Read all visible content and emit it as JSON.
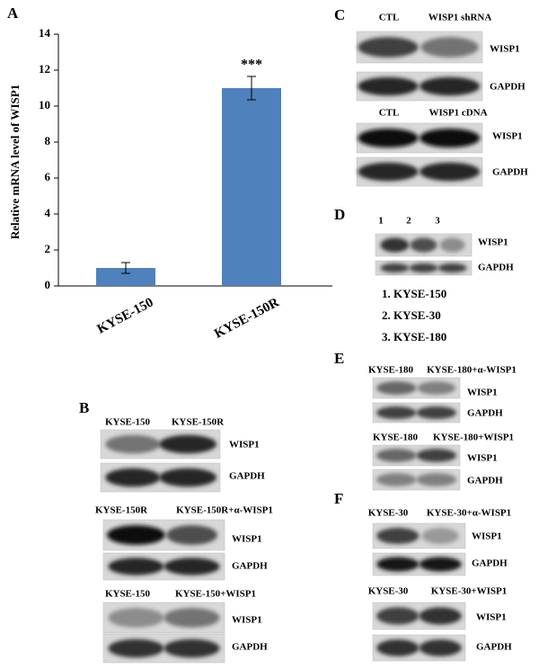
{
  "chart_data": {
    "type": "bar",
    "panel": "A",
    "y_label": "Relative mRNA level of WISP1",
    "categories": [
      "KYSE-150",
      "KYSE-150R"
    ],
    "values": [
      1,
      11
    ],
    "errors": [
      0.3,
      0.65
    ],
    "annotation": "***",
    "color": "#4f81bd",
    "ylim": [
      0,
      14
    ],
    "yticks": [
      0,
      2,
      4,
      6,
      8,
      10,
      12,
      14
    ]
  },
  "panel_b": {
    "panel": "B",
    "blots": [
      {
        "lanes": [
          "KYSE-150",
          "KYSE-150R"
        ],
        "rows": [
          "WISP1",
          "GAPDH"
        ]
      },
      {
        "lanes": [
          "KYSE-150R",
          "KYSE-150R+α-WISP1"
        ],
        "rows": [
          "WISP1",
          "GAPDH"
        ]
      },
      {
        "lanes": [
          "KYSE-150",
          "KYSE-150+WISP1"
        ],
        "rows": [
          "WISP1",
          "GAPDH"
        ]
      }
    ]
  },
  "panel_c": {
    "panel": "C",
    "blots": [
      {
        "lanes": [
          "CTL",
          "WISP1 shRNA"
        ],
        "rows": [
          "WISP1",
          "GAPDH"
        ]
      },
      {
        "lanes": [
          "CTL",
          "WISP1 cDNA"
        ],
        "rows": [
          "WISP1",
          "GAPDH"
        ]
      }
    ]
  },
  "panel_d": {
    "panel": "D",
    "blots": [
      {
        "lanes": [
          "1",
          "2",
          "3"
        ],
        "rows": [
          "WISP1",
          "GAPDH"
        ]
      }
    ],
    "legend": [
      "1. KYSE-150",
      "2. KYSE-30",
      "3. KYSE-180"
    ]
  },
  "panel_e": {
    "panel": "E",
    "blots": [
      {
        "lanes": [
          "KYSE-180",
          "KYSE-180+α-WISP1"
        ],
        "rows": [
          "WISP1",
          "GAPDH"
        ]
      },
      {
        "lanes": [
          "KYSE-180",
          "KYSE-180+WISP1"
        ],
        "rows": [
          "WISP1",
          "GAPDH"
        ]
      }
    ]
  },
  "panel_f": {
    "panel": "F",
    "blots": [
      {
        "lanes": [
          "KYSE-30",
          "KYSE-30+α-WISP1"
        ],
        "rows": [
          "WISP1",
          "GAPDH"
        ]
      },
      {
        "lanes": [
          "KYSE-30",
          "KYSE-30+WISP1"
        ],
        "rows": [
          "WISP1",
          "GAPDH"
        ]
      }
    ]
  }
}
